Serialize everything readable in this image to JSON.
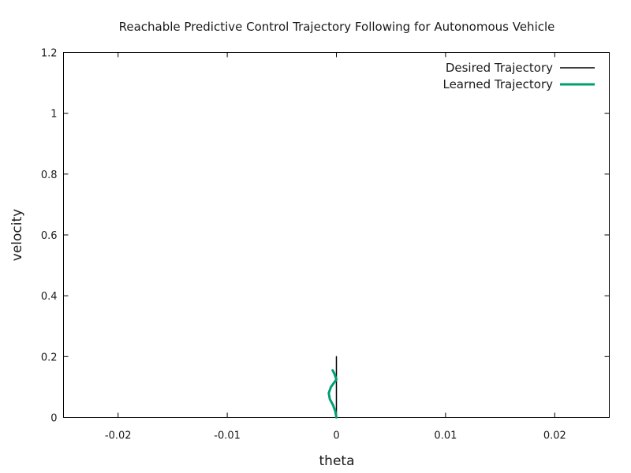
{
  "chart_data": {
    "type": "line",
    "title": "Reachable Predictive Control Trajectory Following for Autonomous Vehicle",
    "xlabel": "theta",
    "ylabel": "velocity",
    "xlim": [
      -0.025,
      0.025
    ],
    "ylim": [
      0,
      1.2
    ],
    "x_ticks": [
      -0.02,
      -0.01,
      0,
      0.01,
      0.02
    ],
    "x_tick_labels": [
      "-0.02",
      "-0.01",
      "0",
      "0.01",
      "0.02"
    ],
    "y_ticks": [
      0,
      0.2,
      0.4,
      0.6,
      0.8,
      1,
      1.2
    ],
    "y_tick_labels": [
      "0",
      "0.2",
      "0.4",
      "0.6",
      "0.8",
      "1",
      "1.2"
    ],
    "grid": false,
    "legend_position": "top-right",
    "series": [
      {
        "name": "Desired Trajectory",
        "color": "#000000",
        "x": [
          0,
          0
        ],
        "y": [
          0,
          0.2
        ]
      },
      {
        "name": "Learned Trajectory",
        "color": "#009e73",
        "x": [
          0,
          -0.0001,
          -0.0003,
          -0.0006,
          -0.0007,
          -0.0005,
          -0.0002,
          0,
          -0.0001,
          -0.0002,
          -0.00035
        ],
        "y": [
          0,
          0.02,
          0.04,
          0.06,
          0.08,
          0.1,
          0.115,
          0.125,
          0.135,
          0.145,
          0.155
        ]
      }
    ]
  }
}
